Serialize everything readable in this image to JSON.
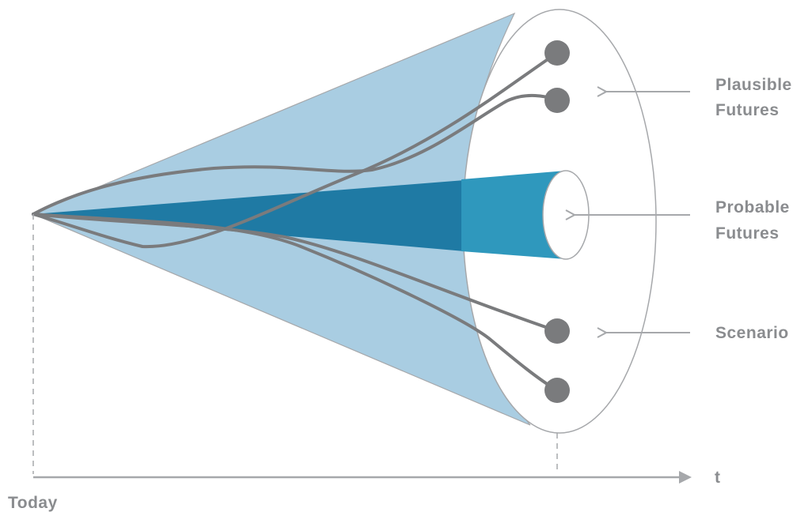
{
  "labels": {
    "plausible_line1": "Plausible",
    "plausible_line2": "Futures",
    "probable_line1": "Probable",
    "probable_line2": "Futures",
    "scenario": "Scenario",
    "axis_t": "t",
    "today": "Today"
  },
  "colors": {
    "plausible_cone": "#a9cde2",
    "probable_cone_inner": "#1f7aa4",
    "probable_cone_outer": "#2f98bd",
    "path": "#7a7b7d",
    "node": "#7a7b7d",
    "axis": "#a6a8ab",
    "label": "#8a8c8f"
  }
}
